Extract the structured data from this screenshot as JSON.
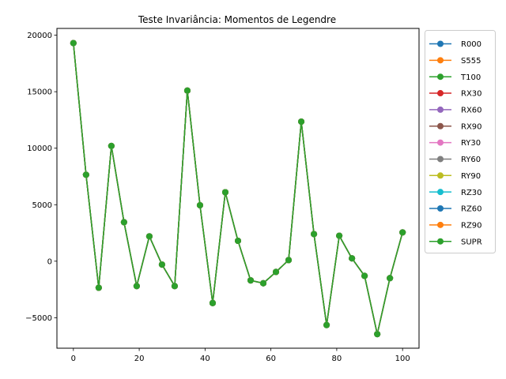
{
  "chart_data": {
    "type": "line",
    "title": "Teste Invariância: Momentos de Legendre",
    "xlabel": "",
    "ylabel": "",
    "xlim": [
      -5,
      105
    ],
    "ylim": [
      -7700,
      20600
    ],
    "xticks": [
      0,
      20,
      40,
      60,
      80,
      100
    ],
    "yticks": [
      -5000,
      0,
      5000,
      10000,
      15000,
      20000
    ],
    "grid": false,
    "legend_placement": "outside-top-right",
    "x": [
      0,
      3.85,
      7.69,
      11.54,
      15.38,
      19.23,
      23.08,
      26.92,
      30.77,
      34.62,
      38.46,
      42.31,
      46.15,
      50,
      53.85,
      57.69,
      61.54,
      65.38,
      69.23,
      73.08,
      76.92,
      80.77,
      84.62,
      88.46,
      92.31,
      96.15,
      100
    ],
    "series": [
      {
        "name": "R000",
        "color": "#1f77b4"
      },
      {
        "name": "S555",
        "color": "#ff7f0e"
      },
      {
        "name": "T100",
        "color": "#2ca02c"
      },
      {
        "name": "RX30",
        "color": "#d62728"
      },
      {
        "name": "RX60",
        "color": "#9467bd"
      },
      {
        "name": "RX90",
        "color": "#8c564b"
      },
      {
        "name": "RY30",
        "color": "#e377c2"
      },
      {
        "name": "RY60",
        "color": "#7f7f7f"
      },
      {
        "name": "RY90",
        "color": "#bcbd22"
      },
      {
        "name": "RZ30",
        "color": "#17becf"
      },
      {
        "name": "RZ60",
        "color": "#1f77b4"
      },
      {
        "name": "RZ90",
        "color": "#ff7f0e"
      },
      {
        "name": "SUPR",
        "color": "#2ca02c"
      }
    ],
    "values": [
      19300,
      7650,
      -2350,
      10200,
      3450,
      -2200,
      2200,
      -300,
      -2200,
      15100,
      4950,
      -3700,
      6100,
      1800,
      -1700,
      -1950,
      -950,
      100,
      12350,
      2400,
      -5650,
      2250,
      250,
      -1300,
      -6450,
      -1500,
      2550
    ]
  }
}
